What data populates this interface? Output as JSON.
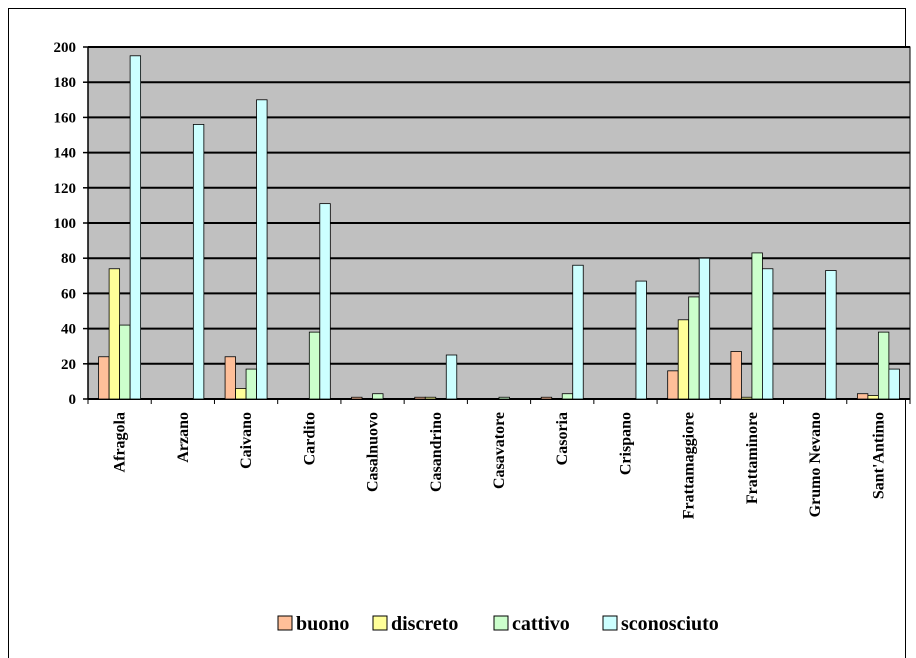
{
  "chart_data": {
    "type": "bar",
    "title": "",
    "xlabel": "",
    "ylabel": "",
    "ylim": [
      0,
      200
    ],
    "yticks": [
      0,
      20,
      40,
      60,
      80,
      100,
      120,
      140,
      160,
      180,
      200
    ],
    "grid": true,
    "plot_background": "#C0C0C0",
    "legend_position": "bottom",
    "categories": [
      "Afragola",
      "Arzano",
      "Caivano",
      "Cardito",
      "Casalnuovo",
      "Casandrino",
      "Casavatore",
      "Casoria",
      "Crispano",
      "Frattamaggiore",
      "Frattaminore",
      "Grumo Nevano",
      "Sant'Antimo"
    ],
    "series": [
      {
        "name": "buono",
        "color": "#FFBF99",
        "values": [
          24,
          0,
          24,
          0,
          1,
          1,
          0,
          1,
          0,
          16,
          27,
          0,
          3
        ]
      },
      {
        "name": "discreto",
        "color": "#FFFF99",
        "values": [
          74,
          0,
          6,
          0,
          0,
          1,
          0,
          0,
          0,
          45,
          1,
          0,
          2
        ]
      },
      {
        "name": "cattivo",
        "color": "#CCFFCC",
        "values": [
          42,
          0,
          17,
          38,
          3,
          0,
          1,
          3,
          0,
          58,
          83,
          0,
          38
        ]
      },
      {
        "name": "sconosciuto",
        "color": "#CCFFFF",
        "values": [
          195,
          156,
          170,
          111,
          0,
          25,
          0,
          76,
          67,
          80,
          74,
          73,
          17
        ]
      }
    ]
  }
}
